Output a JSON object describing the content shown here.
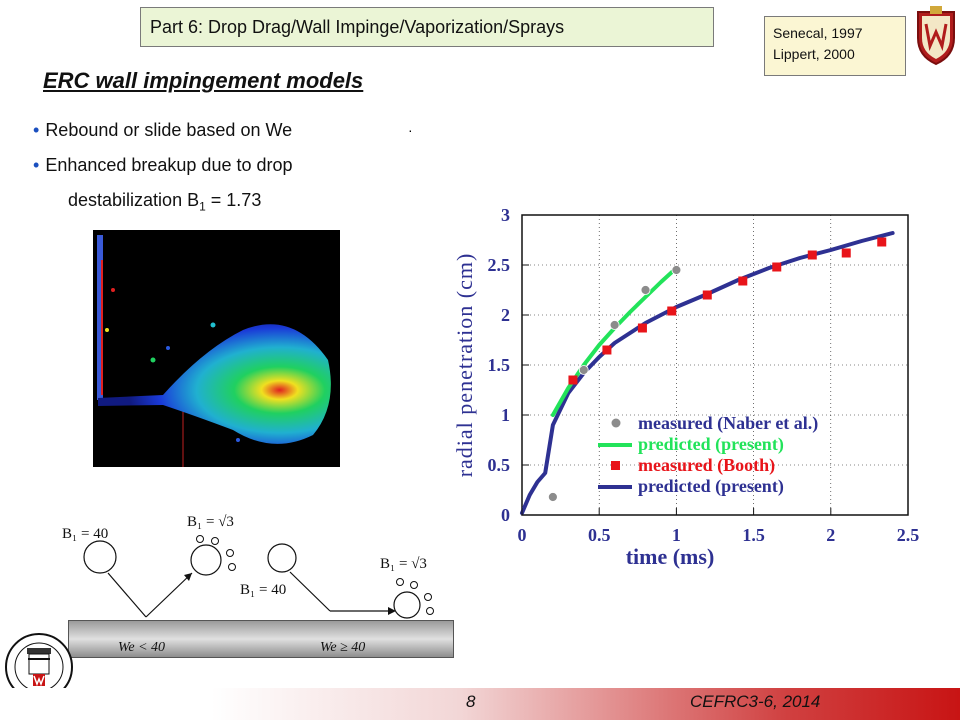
{
  "header": {
    "section_title": "Part 6: Drop Drag/Wall Impinge/Vaporization/Sprays",
    "references": [
      "Senecal, 1997",
      "Lippert, 2000"
    ]
  },
  "slide": {
    "title": "ERC wall impingement models",
    "bullets": [
      "Rebound or slide based on We",
      "Enhanced breakup due to drop"
    ],
    "continuation_prefix": "destabilization B",
    "continuation_sub": "1",
    "continuation_suffix": " = 1.73"
  },
  "diagram": {
    "b_rebound": "B₁ = 40",
    "b_rebound_after": "B₁ = √3",
    "b_slide": "B₁ = 40",
    "b_slide_after": "B₁ = √3",
    "we_low": "We < 40",
    "we_high": "We ≥ 40"
  },
  "footer": {
    "page_number": "8",
    "text": "CEFRC3-6, 2014"
  },
  "colors": {
    "accent_blue": "#2e3192",
    "accent_green": "#22e35a",
    "marker_red": "#e8141a",
    "marker_gray": "#8c8c8c",
    "footer_red": "#c81414"
  },
  "chart_data": {
    "type": "scatter",
    "xlabel": "time (ms)",
    "ylabel": "radial penetration (cm)",
    "xlim": [
      0,
      2.5
    ],
    "ylim": [
      0,
      3
    ],
    "xticks": [
      "0",
      "0.5",
      "1",
      "1.5",
      "2",
      "2.5"
    ],
    "yticks": [
      "0",
      "0.5",
      "1",
      "1.5",
      "2",
      "2.5",
      "3"
    ],
    "legend_placement": "bottom-right",
    "series": [
      {
        "name": "measured (Naber et al.)",
        "style": "marker-circle",
        "color": "#8c8c8c",
        "x": [
          0.2,
          0.4,
          0.6,
          0.8,
          1.0
        ],
        "y": [
          0.18,
          1.45,
          1.9,
          2.25,
          2.45
        ]
      },
      {
        "name": "predicted (present)",
        "style": "line",
        "color": "#22e35a",
        "x": [
          0.2,
          0.3,
          0.4,
          0.5,
          0.6,
          0.7,
          0.8,
          0.9,
          1.0
        ],
        "y": [
          1.0,
          1.27,
          1.5,
          1.7,
          1.87,
          2.03,
          2.18,
          2.33,
          2.47
        ]
      },
      {
        "name": "measured (Booth)",
        "style": "marker-square",
        "color": "#e8141a",
        "x": [
          0.33,
          0.55,
          0.78,
          0.97,
          1.2,
          1.43,
          1.65,
          1.88,
          2.1,
          2.33
        ],
        "y": [
          1.35,
          1.65,
          1.87,
          2.04,
          2.2,
          2.34,
          2.48,
          2.6,
          2.62,
          2.73
        ]
      },
      {
        "name": "predicted (present)",
        "style": "line",
        "color": "#2e3192",
        "x": [
          0.0,
          0.05,
          0.1,
          0.15,
          0.2,
          0.3,
          0.4,
          0.5,
          0.6,
          0.8,
          1.0,
          1.2,
          1.4,
          1.6,
          1.8,
          2.0,
          2.2,
          2.4
        ],
        "y": [
          0.02,
          0.2,
          0.33,
          0.42,
          0.9,
          1.22,
          1.42,
          1.58,
          1.72,
          1.92,
          2.08,
          2.21,
          2.35,
          2.47,
          2.57,
          2.65,
          2.74,
          2.82
        ]
      }
    ]
  }
}
